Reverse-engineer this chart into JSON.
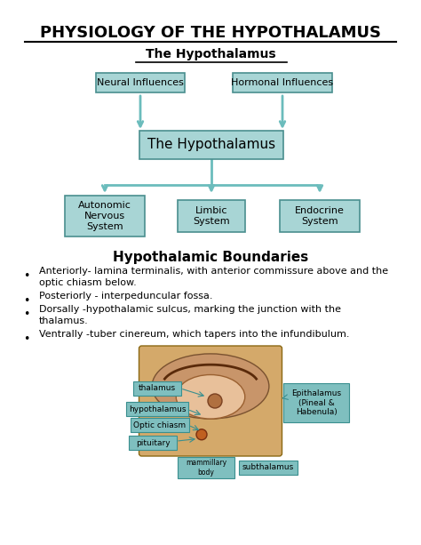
{
  "title": "PHYSIOLOGY OF THE HYPOTHALAMUS",
  "subtitle": "The Hypothalamus",
  "bg_color": "#ffffff",
  "box_fill_light": "#a8d5d5",
  "box_edge": "#4a8f8f",
  "arrow_color": "#6bbcbc",
  "section_title": "Hypothalamic Boundaries",
  "diagram_boxes": {
    "neural": "Neural Influences",
    "hormonal": "Hormonal Influences",
    "hypothalamus": "The Hypothalamus",
    "autonomic": "Autonomic\nNervous\nSystem",
    "limbic": "Limbic\nSystem",
    "endocrine": "Endocrine\nSystem"
  },
  "bullet_lines": [
    [
      "Anteriorly- lamina terminalis, with anterior commissure above and the",
      "optic chiasm below."
    ],
    [
      "Posteriorly - interpeduncular fossa."
    ],
    [
      "Dorsally -hypothalamic sulcus, marking the junction with the",
      "thalamus."
    ],
    [
      "Ventrally -tuber cinereum, which tapers into the infundibulum."
    ]
  ],
  "label_box_fill": "#7fbfbf",
  "label_box_edge": "#3a8f8f",
  "brain_bg": "#d4a96a",
  "brain_edge": "#8b6914",
  "cortex_color": "#c8956a",
  "cortex_edge": "#7a5230",
  "inner_color": "#e8c09a",
  "inner_edge": "#9a6030",
  "curve_color": "#5a2a0a",
  "pit_color": "#c06020",
  "pit_edge": "#7a3010"
}
